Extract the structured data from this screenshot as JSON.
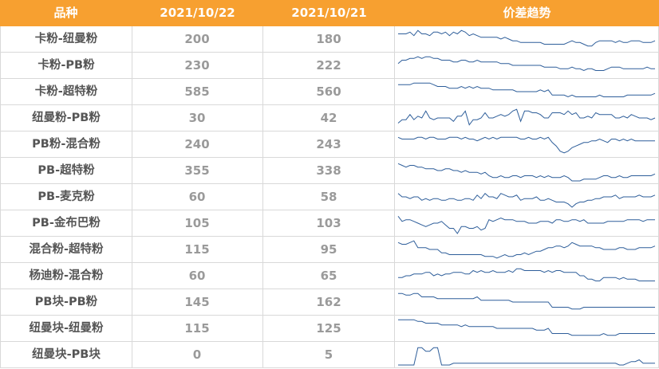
{
  "header": {
    "col_name": "品种",
    "col_date1": "2021/10/22",
    "col_date2": "2021/10/21",
    "col_trend": "价差趋势"
  },
  "colors": {
    "header_bg": "#F7A030",
    "line": "#2E5E9A",
    "grid": "#d9d9d9"
  },
  "chart_data": {
    "type": "table",
    "columns": [
      "品种",
      "2021/10/22",
      "2021/10/21",
      "价差趋势"
    ],
    "rows": [
      {
        "name": "卡粉-纽曼粉",
        "v1": "200",
        "v2": "180",
        "trend": [
          3,
          3,
          3,
          2,
          4,
          1,
          3,
          3,
          4,
          2,
          2,
          3,
          2,
          4,
          2,
          3,
          1,
          2,
          4,
          3,
          4,
          5,
          5,
          5,
          5,
          5,
          6,
          5,
          6,
          7,
          7,
          8,
          8,
          8,
          8,
          8,
          8,
          9,
          9,
          9,
          9,
          9,
          9,
          8,
          7,
          8,
          8,
          9,
          10,
          10,
          8,
          7,
          7,
          7,
          7,
          8,
          7,
          8,
          8,
          7,
          7,
          7,
          8,
          8,
          8,
          7
        ]
      },
      {
        "name": "卡粉-PB粉",
        "v1": "230",
        "v2": "222",
        "trend": [
          5,
          3,
          3,
          2,
          2,
          1,
          2,
          1,
          1,
          2,
          2,
          3,
          3,
          3,
          4,
          4,
          3,
          3,
          4,
          4,
          3,
          4,
          4,
          4,
          4,
          4,
          5,
          5,
          5,
          6,
          6,
          6,
          6,
          6,
          6,
          6,
          6,
          7,
          7,
          7,
          7,
          8,
          8,
          8,
          7,
          8,
          8,
          9,
          8,
          8,
          9,
          9,
          9,
          8,
          7,
          7,
          7,
          8,
          8,
          8,
          8,
          8,
          8,
          7,
          8,
          8
        ]
      },
      {
        "name": "卡粉-超特粉",
        "v1": "585",
        "v2": "560",
        "trend": [
          2,
          2,
          2,
          2,
          1,
          1,
          1,
          1,
          1,
          2,
          3,
          3,
          3,
          4,
          4,
          4,
          3,
          4,
          3,
          4,
          3,
          4,
          4,
          4,
          5,
          5,
          5,
          5,
          5,
          5,
          6,
          6,
          6,
          6,
          6,
          6,
          5,
          6,
          5,
          8,
          8,
          8,
          8,
          9,
          8,
          9,
          9,
          9,
          9,
          9,
          9,
          8,
          9,
          9,
          9,
          9,
          9,
          9,
          8,
          8,
          8,
          8,
          8,
          8,
          8,
          7
        ]
      },
      {
        "name": "纽曼粉-PB粉",
        "v1": "30",
        "v2": "42",
        "trend": [
          9,
          7,
          7,
          4,
          7,
          5,
          6,
          2,
          6,
          7,
          6,
          6,
          6,
          6,
          8,
          5,
          5,
          2,
          10,
          7,
          7,
          6,
          3,
          6,
          6,
          5,
          4,
          5,
          4,
          2,
          1,
          8,
          2,
          2,
          3,
          3,
          4,
          6,
          6,
          3,
          3,
          3,
          4,
          2,
          4,
          3,
          6,
          6,
          5,
          6,
          3,
          4,
          4,
          4,
          4,
          6,
          6,
          5,
          6,
          4,
          5,
          6,
          6,
          6,
          7,
          6
        ]
      },
      {
        "name": "PB粉-混合粉",
        "v1": "240",
        "v2": "243",
        "trend": [
          2,
          3,
          3,
          3,
          3,
          2,
          2,
          3,
          2,
          2,
          3,
          3,
          3,
          2,
          2,
          2,
          3,
          2,
          3,
          3,
          4,
          3,
          2,
          3,
          2,
          3,
          2,
          2,
          2,
          2,
          2,
          3,
          3,
          2,
          3,
          3,
          2,
          3,
          2,
          5,
          7,
          10,
          11,
          10,
          8,
          7,
          6,
          5,
          5,
          4,
          4,
          3,
          4,
          5,
          3,
          3,
          4,
          3,
          4,
          3,
          4,
          4,
          4,
          4,
          4,
          4
        ]
      },
      {
        "name": "PB-超特粉",
        "v1": "355",
        "v2": "338",
        "trend": [
          2,
          3,
          4,
          3,
          3,
          4,
          4,
          5,
          5,
          5,
          6,
          6,
          5,
          5,
          6,
          6,
          7,
          6,
          7,
          7,
          7,
          8,
          7,
          9,
          10,
          10,
          9,
          10,
          10,
          9,
          9,
          10,
          9,
          9,
          9,
          10,
          9,
          10,
          9,
          10,
          10,
          10,
          9,
          10,
          12,
          12,
          12,
          11,
          11,
          11,
          11,
          10,
          9,
          9,
          10,
          10,
          9,
          10,
          10,
          9,
          9,
          9,
          9,
          9,
          9,
          8
        ]
      },
      {
        "name": "PB-麦克粉",
        "v1": "60",
        "v2": "58",
        "trend": [
          4,
          6,
          6,
          7,
          6,
          6,
          8,
          7,
          8,
          7,
          7,
          8,
          8,
          7,
          7,
          8,
          8,
          7,
          7,
          8,
          5,
          7,
          4,
          6,
          6,
          7,
          4,
          5,
          6,
          6,
          5,
          8,
          7,
          7,
          7,
          6,
          8,
          8,
          7,
          8,
          9,
          9,
          9,
          10,
          12,
          10,
          9,
          9,
          8,
          8,
          7,
          7,
          6,
          6,
          6,
          5,
          7,
          6,
          6,
          6,
          6,
          5,
          6,
          6,
          6,
          5
        ]
      },
      {
        "name": "PB-金布巴粉",
        "v1": "105",
        "v2": "103",
        "trend": [
          2,
          5,
          4,
          4,
          5,
          6,
          7,
          8,
          7,
          6,
          6,
          5,
          7,
          9,
          9,
          12,
          8,
          8,
          9,
          9,
          8,
          10,
          9,
          4,
          5,
          4,
          3,
          4,
          4,
          4,
          5,
          5,
          5,
          6,
          6,
          6,
          5,
          5,
          5,
          6,
          4,
          4,
          5,
          5,
          4,
          4,
          5,
          4,
          6,
          6,
          6,
          6,
          6,
          5,
          5,
          5,
          5,
          5,
          4,
          4,
          4,
          4,
          5,
          4,
          4,
          4
        ]
      },
      {
        "name": "混合粉-超特粉",
        "v1": "115",
        "v2": "95",
        "trend": [
          2,
          3,
          3,
          2,
          1,
          5,
          5,
          5,
          6,
          6,
          6,
          8,
          8,
          9,
          9,
          9,
          9,
          9,
          9,
          9,
          9,
          9,
          10,
          10,
          10,
          11,
          10,
          9,
          10,
          10,
          9,
          9,
          8,
          9,
          8,
          7,
          7,
          6,
          5,
          5,
          4,
          4,
          5,
          4,
          2,
          3,
          4,
          4,
          4,
          4,
          5,
          5,
          6,
          6,
          6,
          6,
          5,
          5,
          6,
          6,
          6,
          5,
          5,
          5,
          5,
          4
        ]
      },
      {
        "name": "杨迪粉-混合粉",
        "v1": "60",
        "v2": "65",
        "trend": [
          7,
          7,
          6,
          6,
          5,
          5,
          5,
          4,
          4,
          6,
          5,
          6,
          5,
          5,
          4,
          4,
          4,
          5,
          5,
          3,
          4,
          3,
          4,
          4,
          3,
          4,
          4,
          4,
          3,
          4,
          2,
          2,
          3,
          3,
          3,
          3,
          3,
          4,
          3,
          4,
          3,
          3,
          4,
          4,
          4,
          4,
          6,
          6,
          8,
          8,
          9,
          9,
          7,
          7,
          7,
          7,
          8,
          7,
          8,
          8,
          8,
          9,
          9,
          9,
          9,
          9
        ]
      },
      {
        "name": "PB块-PB粉",
        "v1": "145",
        "v2": "162",
        "trend": [
          1,
          1,
          2,
          2,
          1,
          1,
          3,
          3,
          3,
          3,
          4,
          4,
          4,
          4,
          4,
          4,
          4,
          4,
          4,
          4,
          3,
          5,
          5,
          5,
          5,
          5,
          5,
          5,
          5,
          6,
          6,
          6,
          6,
          6,
          6,
          6,
          6,
          6,
          6,
          9,
          9,
          9,
          9,
          9,
          10,
          10,
          10,
          9,
          9,
          9,
          9,
          9,
          9,
          9,
          9,
          9,
          9,
          9,
          9,
          9,
          9,
          9,
          9,
          9,
          9,
          9
        ]
      },
      {
        "name": "纽曼块-纽曼粉",
        "v1": "115",
        "v2": "125",
        "trend": [
          1,
          1,
          1,
          1,
          1,
          2,
          2,
          3,
          3,
          3,
          3,
          4,
          4,
          4,
          4,
          4,
          5,
          4,
          5,
          5,
          5,
          5,
          5,
          5,
          5,
          6,
          6,
          6,
          6,
          6,
          6,
          6,
          6,
          6,
          6,
          7,
          7,
          7,
          6,
          9,
          9,
          9,
          9,
          9,
          10,
          10,
          10,
          10,
          10,
          10,
          10,
          10,
          9,
          10,
          10,
          10,
          9,
          9,
          9,
          9,
          9,
          9,
          9,
          9,
          9,
          9
        ]
      },
      {
        "name": "纽曼块-PB块",
        "v1": "0",
        "v2": "5",
        "trend": [
          12,
          12,
          12,
          12,
          12,
          2,
          2,
          4,
          4,
          2,
          2,
          12,
          12,
          12,
          11,
          11,
          11,
          11,
          11,
          11,
          11,
          11,
          11,
          11,
          11,
          11,
          11,
          11,
          11,
          11,
          11,
          11,
          11,
          11,
          11,
          11,
          11,
          11,
          11,
          11,
          11,
          11,
          11,
          11,
          11,
          11,
          11,
          11,
          11,
          11,
          11,
          11,
          11,
          11,
          11,
          11,
          12,
          12,
          11,
          10,
          10,
          9,
          11,
          11,
          11,
          11
        ]
      }
    ]
  }
}
